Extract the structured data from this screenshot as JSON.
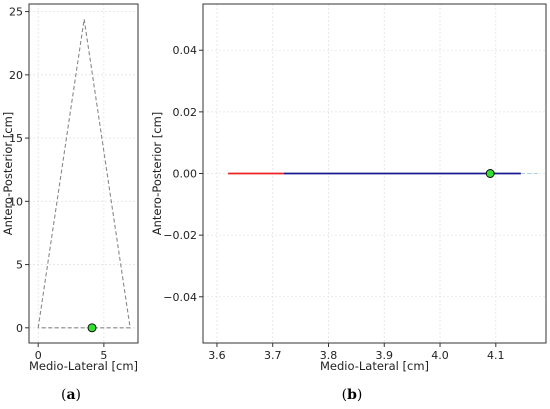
{
  "chart_data": [
    {
      "id": "a",
      "type": "line",
      "caption_letter": "a",
      "xlabel": "Medio-Lateral [cm]",
      "ylabel": "Antero-Posterior [cm]",
      "xlim": [
        -0.7,
        7.6
      ],
      "ylim": [
        -1.2,
        25.6
      ],
      "xticks": [
        0,
        5
      ],
      "yticks": [
        0,
        5,
        10,
        15,
        20,
        25
      ],
      "xtick_labels": [
        "0",
        "5"
      ],
      "ytick_labels": [
        "0",
        "5",
        "10",
        "15",
        "20",
        "25"
      ],
      "grid": true,
      "series": [
        {
          "style": "dashed",
          "color": "#888888",
          "points": [
            [
              0,
              0
            ],
            [
              3.5,
              24.4
            ],
            [
              7.0,
              0
            ],
            [
              0,
              0
            ]
          ]
        }
      ],
      "markers": [
        {
          "x": 4.1,
          "y": 0,
          "color": "#33dd33"
        }
      ]
    },
    {
      "id": "b",
      "type": "line",
      "caption_letter": "b",
      "xlabel": "Medio-Lateral [cm]",
      "ylabel": "Antero-Posterior [cm]",
      "xlim": [
        3.575,
        4.19
      ],
      "ylim": [
        -0.055,
        0.055
      ],
      "xticks": [
        3.6,
        3.7,
        3.8,
        3.9,
        4.0,
        4.1
      ],
      "yticks": [
        -0.04,
        -0.02,
        0.0,
        0.02,
        0.04
      ],
      "xtick_labels": [
        "3.6",
        "3.7",
        "3.8",
        "3.9",
        "4.0",
        "4.1"
      ],
      "ytick_labels": [
        "−0.04",
        "−0.02",
        "0.00",
        "0.02",
        "0.04"
      ],
      "grid": true,
      "series": [
        {
          "style": "solid",
          "color": "#ee2222",
          "points": [
            [
              3.62,
              0
            ],
            [
              3.72,
              0
            ]
          ]
        },
        {
          "style": "solid",
          "color": "#1a1a8c",
          "points": [
            [
              3.72,
              0
            ],
            [
              4.145,
              0
            ]
          ]
        },
        {
          "style": "dashed",
          "color": "#aaccdd",
          "points": [
            [
              4.145,
              0
            ],
            [
              4.175,
              0
            ]
          ]
        }
      ],
      "markers": [
        {
          "x": 4.09,
          "y": 0,
          "color": "#33dd33"
        }
      ]
    }
  ]
}
